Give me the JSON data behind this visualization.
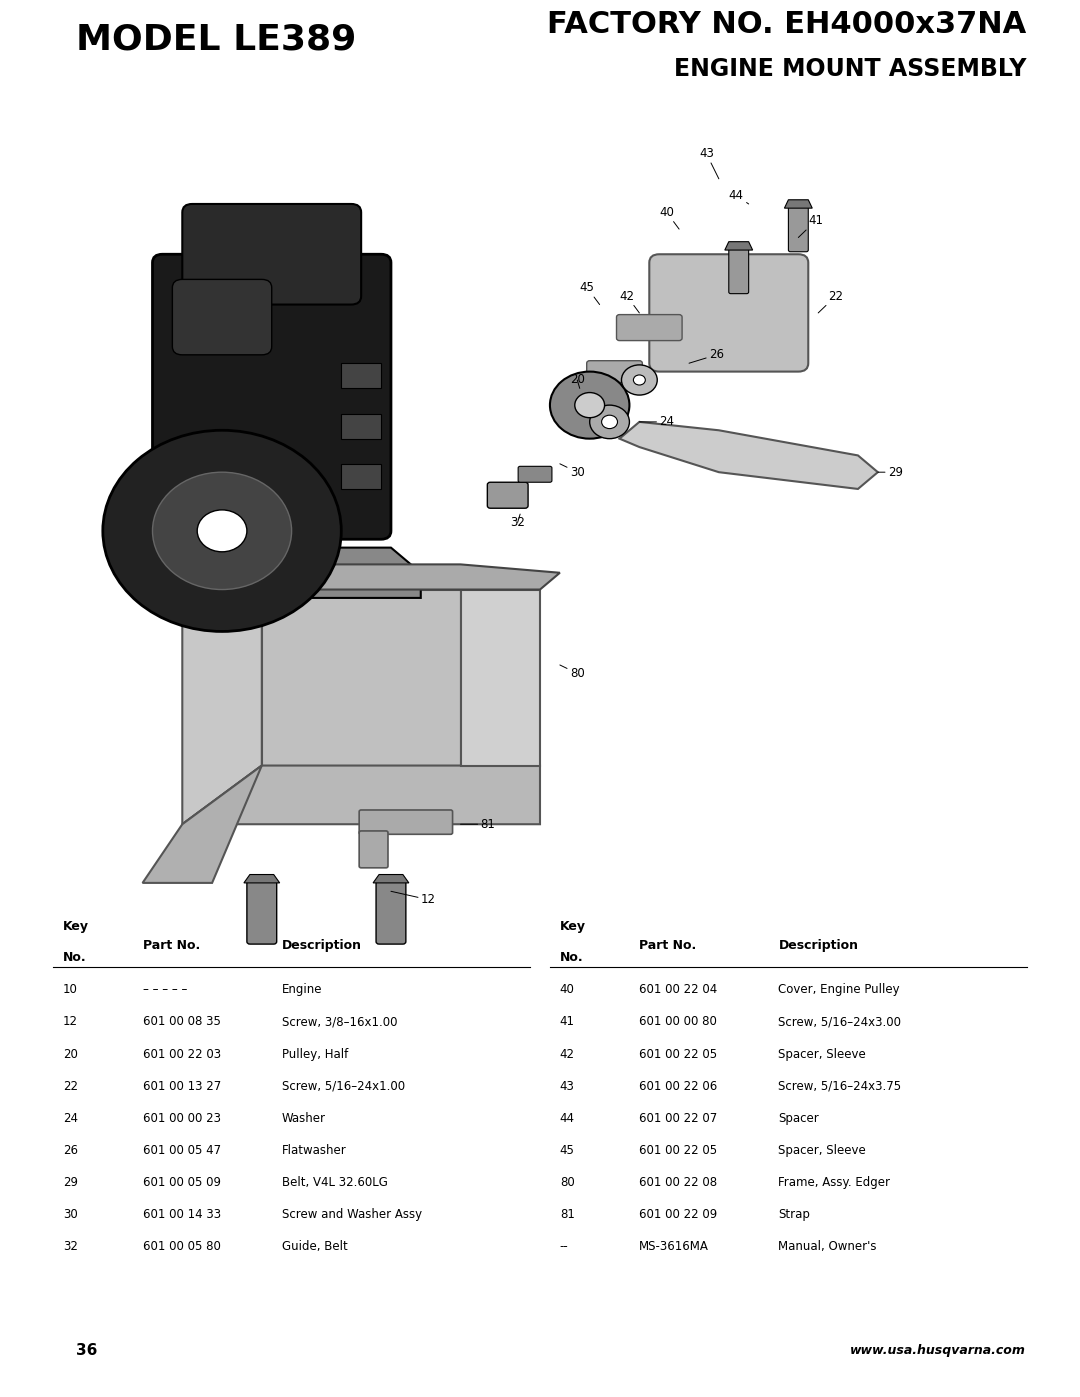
{
  "page_title_left": "MODEL LE389",
  "page_title_right": "FACTORY NO. EH4000x37NA",
  "page_subtitle_right": "ENGINE MOUNT ASSEMBLY",
  "page_number": "36",
  "website": "www.usa.husqvarna.com",
  "bg_color": "#ffffff",
  "table_headers": [
    "Key\nNo.",
    "Part No.",
    "Description"
  ],
  "left_table": [
    [
      "10",
      "– – – – –",
      "Engine"
    ],
    [
      "12",
      "601 00 08 35",
      "Screw, 3/8–16x1.00"
    ],
    [
      "20",
      "601 00 22 03",
      "Pulley, Half"
    ],
    [
      "22",
      "601 00 13 27",
      "Screw, 5/16–24x1.00"
    ],
    [
      "24",
      "601 00 00 23",
      "Washer"
    ],
    [
      "26",
      "601 00 05 47",
      "Flatwasher"
    ],
    [
      "29",
      "601 00 05 09",
      "Belt, V4L 32.60LG"
    ],
    [
      "30",
      "601 00 14 33",
      "Screw and Washer Assy"
    ],
    [
      "32",
      "601 00 05 80",
      "Guide, Belt"
    ]
  ],
  "right_table": [
    [
      "40",
      "601 00 22 04",
      "Cover, Engine Pulley"
    ],
    [
      "41",
      "601 00 00 80",
      "Screw, 5/16–24x3.00"
    ],
    [
      "42",
      "601 00 22 05",
      "Spacer, Sleeve"
    ],
    [
      "43",
      "601 00 22 06",
      "Screw, 5/16–24x3.75"
    ],
    [
      "44",
      "601 00 22 07",
      "Spacer"
    ],
    [
      "45",
      "601 00 22 05",
      "Spacer, Sleeve"
    ],
    [
      "80",
      "601 00 22 08",
      "Frame, Assy. Edger"
    ],
    [
      "81",
      "601 00 22 09",
      "Strap"
    ],
    [
      "--",
      "MS-3616MA",
      "Manual, Owner's"
    ]
  ]
}
